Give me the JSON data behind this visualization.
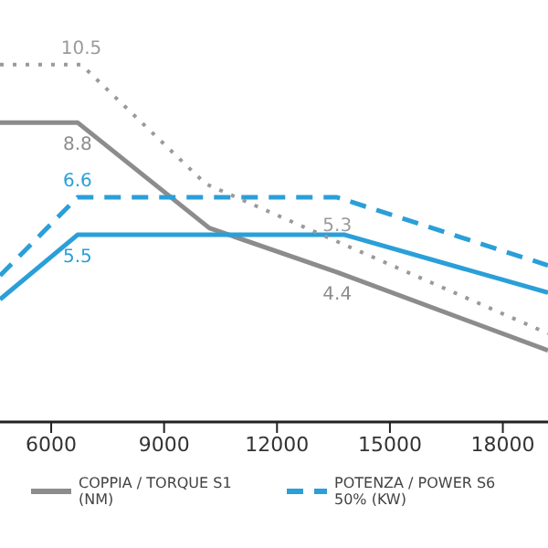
{
  "chart_data": {
    "type": "line",
    "xlim": [
      4640,
      19200
    ],
    "xticks": [
      6000,
      9000,
      12000,
      15000,
      18000
    ],
    "ylim": [
      0,
      12.4
    ],
    "tick_labels": "x",
    "legend": "bottom",
    "marker": "none",
    "series": [
      {
        "name": "COPPIA / TORQUE S1 (NM)",
        "color": "#8c8c8c",
        "line_style": "solid",
        "x": [
          4640,
          6700,
          10200,
          13600,
          19200
        ],
        "values": [
          8.8,
          8.8,
          5.7,
          4.4,
          2.1
        ],
        "value_labels": [
          null,
          "8.8",
          null,
          "4.4",
          null
        ]
      },
      {
        "color": "#2a9fd8",
        "line_style": "solid",
        "x": [
          4640,
          6700,
          13800,
          19200
        ],
        "values": [
          3.6,
          5.5,
          5.5,
          3.8
        ],
        "value_labels": [
          null,
          "5.5",
          null,
          null
        ]
      },
      {
        "name": "POTENZA / POWER S6 50% (KW)",
        "color": "#2a9fd8",
        "line_style": "dashed",
        "x": [
          4640,
          6700,
          13600,
          19200
        ],
        "values": [
          4.3,
          6.6,
          6.6,
          4.6
        ],
        "value_labels": [
          null,
          "6.6",
          null,
          null
        ]
      },
      {
        "color": "#9a9a9a",
        "line_style": "dotted",
        "x": [
          4640,
          6800,
          10100,
          13600,
          19200
        ],
        "values": [
          10.5,
          10.5,
          7.0,
          5.3,
          2.6
        ],
        "value_labels": [
          null,
          "10.5",
          null,
          "5.3",
          null
        ]
      }
    ]
  }
}
